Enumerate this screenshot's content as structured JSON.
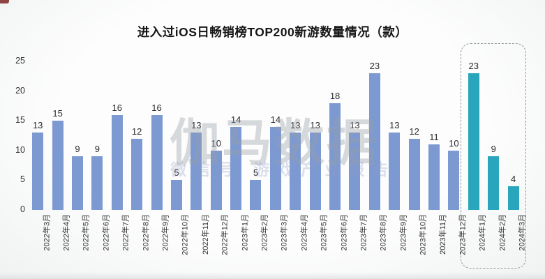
{
  "title": "进入过iOS日畅销榜TOP200新游数量情况（款）",
  "watermark": {
    "main": "伽马数据",
    "sub": "微信号 游戏产业报告"
  },
  "chart_data": {
    "type": "bar",
    "title": "进入过iOS日畅销榜TOP200新游数量情况（款）",
    "categories": [
      "2022年3月",
      "2022年4月",
      "2022年5月",
      "2022年6月",
      "2022年7月",
      "2022年8月",
      "2022年9月",
      "2022年10月",
      "2022年11月",
      "2022年12月",
      "2023年1月",
      "2023年2月",
      "2023年3月",
      "2023年4月",
      "2023年5月",
      "2023年6月",
      "2023年7月",
      "2023年8月",
      "2023年9月",
      "2023年10月",
      "2023年11月",
      "2023年12月",
      "2024年1月",
      "2024年2月",
      "2024年3月"
    ],
    "values": [
      13,
      15,
      9,
      9,
      16,
      12,
      16,
      5,
      13,
      10,
      14,
      5,
      14,
      13,
      13,
      18,
      13,
      23,
      13,
      12,
      11,
      10,
      23,
      9,
      4
    ],
    "xlabel": "",
    "ylabel": "",
    "ylim": [
      0,
      25
    ],
    "yticks": [
      0,
      5,
      10,
      15,
      20,
      25
    ],
    "grid": false,
    "legend": "none",
    "data_labels": true,
    "highlight_start_index": 22,
    "highlight_note": "last three months (2024年1月-2024年3月) drawn in teal inside a dashed rounded box",
    "colors": {
      "bar": "#7d99d2",
      "bar_highlight": "#2aa6bc",
      "dashed_box_border": "#8f969d",
      "label_text": "#2b2b2b",
      "axis_text": "#333333"
    }
  }
}
